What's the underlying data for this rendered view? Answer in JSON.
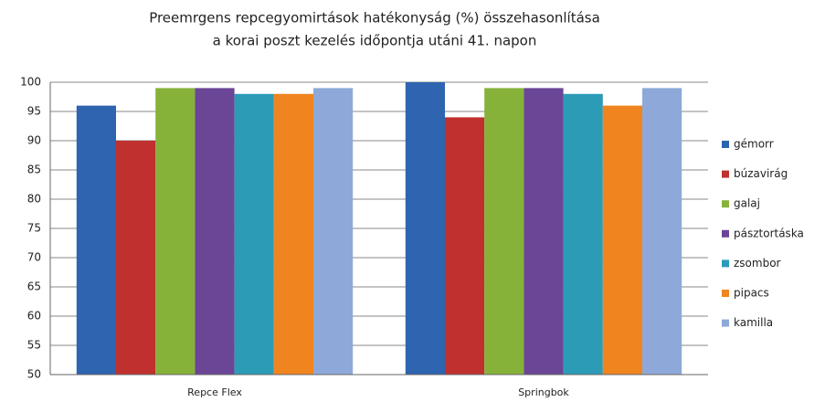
{
  "chart_data": {
    "type": "bar",
    "title": [
      "Preemrgens repcegyomirtások hatékonyság (%) összehasonlítása",
      "a korai poszt kezelés időpontja utáni 41. napon"
    ],
    "categories": [
      "Repce Flex",
      "Springbok"
    ],
    "series": [
      {
        "name": "gémorr",
        "color": "#2e64b0",
        "values": [
          96,
          100
        ]
      },
      {
        "name": "búzavirág",
        "color": "#c0302e",
        "values": [
          90,
          94
        ]
      },
      {
        "name": "galaj",
        "color": "#86b23a",
        "values": [
          99,
          99
        ]
      },
      {
        "name": "pásztortáska",
        "color": "#6b4596",
        "values": [
          99,
          99
        ]
      },
      {
        "name": "zsombor",
        "color": "#2c9bb6",
        "values": [
          98,
          98
        ]
      },
      {
        "name": "pipacs",
        "color": "#f0841f",
        "values": [
          98,
          96
        ]
      },
      {
        "name": "kamilla",
        "color": "#8ea9d9",
        "values": [
          99,
          99
        ]
      }
    ],
    "ylim": [
      50,
      100
    ],
    "yticks": [
      50,
      55,
      60,
      65,
      70,
      75,
      80,
      85,
      90,
      95,
      100
    ],
    "grid": true,
    "legend": "right"
  }
}
